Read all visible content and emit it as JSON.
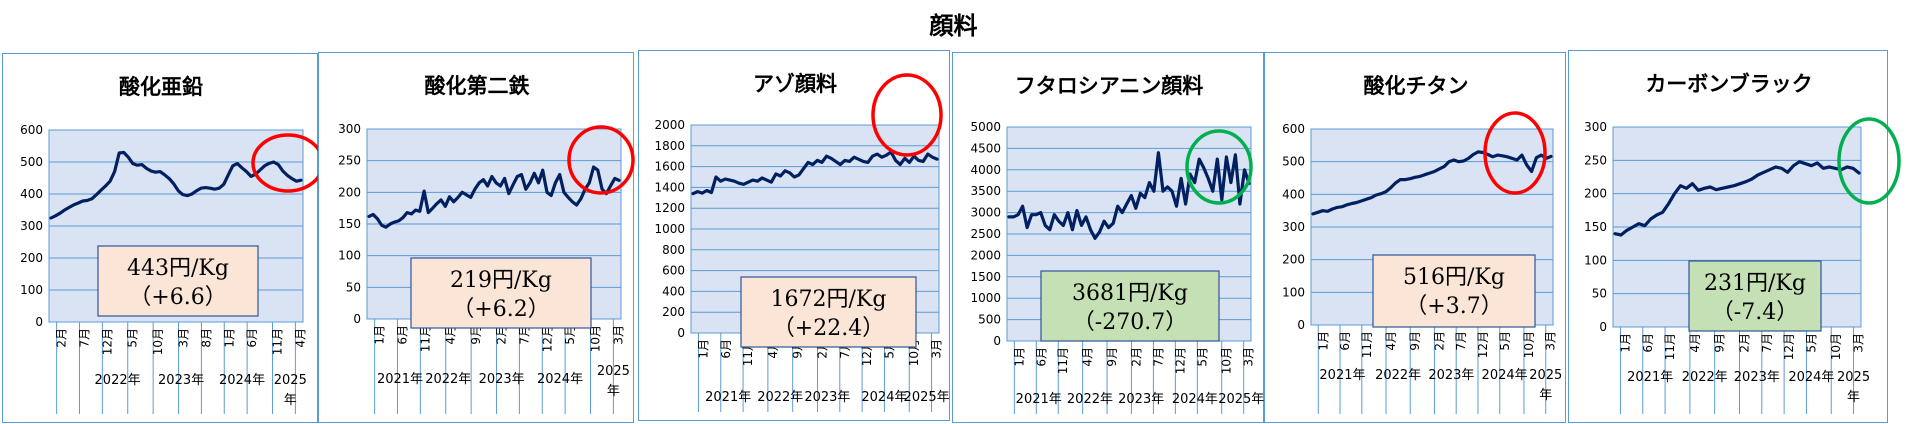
{
  "title": "顔料",
  "colors": {
    "line": "#002060",
    "plot_bg": "#dae3f3",
    "grid": "#5b9bd5",
    "red": "#ff0000",
    "green": "#00b050",
    "box_orange": "#fbe5d6",
    "box_green": "#c5e0b4",
    "box_border": "#2f5597"
  },
  "chart_data": [
    {
      "type": "line",
      "title": "酸化亜鉛",
      "ylim": [
        0,
        600
      ],
      "yticks": [
        0,
        100,
        200,
        300,
        400,
        500,
        600
      ],
      "xtick_labels": [
        "2月",
        "7月",
        "12月",
        "5月",
        "10月",
        "3月",
        "8月",
        "1月",
        "6月",
        "11月",
        "4月"
      ],
      "year_labels": [
        "2022年",
        "2023年",
        "2024年",
        "2025年"
      ],
      "values": [
        325,
        332,
        340,
        350,
        358,
        366,
        372,
        378,
        380,
        385,
        398,
        412,
        425,
        440,
        470,
        528,
        530,
        515,
        495,
        490,
        492,
        480,
        472,
        468,
        470,
        460,
        448,
        432,
        410,
        398,
        395,
        400,
        410,
        418,
        420,
        418,
        415,
        418,
        430,
        460,
        488,
        495,
        482,
        470,
        455,
        462,
        475,
        488,
        496,
        500,
        492,
        472,
        458,
        448,
        440,
        443
      ],
      "price_label": "443円/Kg",
      "change_label": "（+6.6）",
      "trend": "up"
    },
    {
      "type": "line",
      "title": "酸化第二鉄",
      "ylim": [
        0,
        300
      ],
      "yticks": [
        0,
        50,
        100,
        150,
        200,
        250,
        300
      ],
      "xtick_labels": [
        "1月",
        "6月",
        "11月",
        "4月",
        "9月",
        "2月",
        "7月",
        "12月",
        "5月",
        "10月",
        "3月"
      ],
      "year_labels": [
        "2021年",
        "2022年",
        "2023年",
        "2024年",
        "2025年"
      ],
      "values": [
        162,
        165,
        158,
        148,
        145,
        150,
        153,
        155,
        160,
        168,
        166,
        172,
        170,
        202,
        168,
        175,
        182,
        188,
        178,
        193,
        185,
        192,
        200,
        196,
        192,
        205,
        215,
        220,
        210,
        225,
        215,
        210,
        222,
        198,
        212,
        225,
        228,
        205,
        215,
        230,
        215,
        235,
        200,
        195,
        215,
        228,
        200,
        192,
        185,
        180,
        190,
        205,
        215,
        240,
        235,
        205,
        198,
        210,
        222,
        219
      ],
      "price_label": "219円/Kg",
      "change_label": "（+6.2）",
      "trend": "up"
    },
    {
      "type": "line",
      "title": "アゾ顔料",
      "ylim": [
        0,
        2000
      ],
      "yticks": [
        0,
        200,
        400,
        600,
        800,
        1000,
        1200,
        1400,
        1600,
        1800,
        2000
      ],
      "xtick_labels": [
        "1月",
        "6月",
        "11月",
        "4月",
        "9月",
        "2月",
        "7月",
        "12月",
        "5月",
        "10月",
        "3月"
      ],
      "year_labels": [
        "2021年",
        "2022年",
        "2023年",
        "2024年",
        "2025年"
      ],
      "values": [
        1340,
        1360,
        1345,
        1370,
        1350,
        1500,
        1460,
        1480,
        1470,
        1460,
        1440,
        1430,
        1450,
        1470,
        1460,
        1490,
        1470,
        1450,
        1530,
        1510,
        1560,
        1540,
        1500,
        1520,
        1580,
        1640,
        1620,
        1660,
        1640,
        1700,
        1680,
        1650,
        1620,
        1660,
        1650,
        1690,
        1670,
        1650,
        1640,
        1700,
        1720,
        1690,
        1710,
        1740,
        1660,
        1620,
        1680,
        1640,
        1700,
        1660,
        1650,
        1720,
        1690,
        1672
      ],
      "price_label": "1672円/Kg",
      "change_label": "（+22.4）",
      "trend": "up"
    },
    {
      "type": "line",
      "title": "フタロシアニン顔料",
      "ylim": [
        0,
        5000
      ],
      "yticks": [
        0,
        500,
        1000,
        1500,
        2000,
        2500,
        3000,
        3500,
        4000,
        4500,
        5000
      ],
      "xtick_labels": [
        "1月",
        "6月",
        "11月",
        "4月",
        "9月",
        "2月",
        "7月",
        "12月",
        "5月",
        "10月",
        "3月"
      ],
      "year_labels": [
        "2021年",
        "2022年",
        "2023年",
        "2024年",
        "2025年"
      ],
      "values": [
        2900,
        2900,
        2950,
        3150,
        2650,
        2950,
        2950,
        3000,
        2700,
        2600,
        2950,
        2800,
        2700,
        3000,
        2600,
        3050,
        2700,
        2900,
        2600,
        2400,
        2550,
        2800,
        2650,
        2750,
        3150,
        3000,
        3200,
        3400,
        3100,
        3450,
        3350,
        3700,
        3500,
        4400,
        3500,
        3600,
        3500,
        3150,
        3800,
        3200,
        3900,
        3700,
        4250,
        4050,
        3800,
        3500,
        4250,
        3300,
        4300,
        3700,
        4350,
        3200,
        4000,
        3681
      ],
      "price_label": "3681円/Kg",
      "change_label": "（-270.7）",
      "trend": "down"
    },
    {
      "type": "line",
      "title": "酸化チタン",
      "ylim": [
        0,
        600
      ],
      "yticks": [
        0,
        100,
        200,
        300,
        400,
        500,
        600
      ],
      "xtick_labels": [
        "1月",
        "6月",
        "11月",
        "4月",
        "9月",
        "2月",
        "7月",
        "12月",
        "5月",
        "10月",
        "3月"
      ],
      "year_labels": [
        "2021年",
        "2022年",
        "2023年",
        "2024年",
        "2025年"
      ],
      "values": [
        340,
        345,
        350,
        348,
        355,
        360,
        362,
        368,
        372,
        375,
        380,
        385,
        390,
        398,
        402,
        408,
        420,
        435,
        445,
        445,
        448,
        452,
        455,
        460,
        465,
        470,
        478,
        485,
        500,
        505,
        500,
        502,
        510,
        522,
        530,
        528,
        522,
        515,
        520,
        518,
        515,
        510,
        505,
        520,
        490,
        470,
        512,
        520,
        510,
        516
      ],
      "price_label": "516円/Kg",
      "change_label": "（+3.7）",
      "trend": "up"
    },
    {
      "type": "line",
      "title": "カーボンブラック",
      "ylim": [
        0,
        300
      ],
      "yticks": [
        0,
        50,
        100,
        150,
        200,
        250,
        300
      ],
      "xtick_labels": [
        "1月",
        "6月",
        "11月",
        "4月",
        "9月",
        "2月",
        "7月",
        "12月",
        "5月",
        "10月",
        "3月"
      ],
      "year_labels": [
        "2021年",
        "2022年",
        "2023年",
        "2024年",
        "2025年"
      ],
      "values": [
        140,
        138,
        145,
        150,
        155,
        152,
        162,
        168,
        172,
        185,
        200,
        212,
        208,
        215,
        205,
        208,
        210,
        206,
        208,
        210,
        212,
        215,
        218,
        222,
        228,
        232,
        236,
        240,
        238,
        232,
        242,
        248,
        245,
        242,
        246,
        238,
        240,
        238,
        236,
        240,
        238,
        231
      ],
      "price_label": "231円/Kg",
      "change_label": "（-7.4）",
      "trend": "down"
    }
  ]
}
